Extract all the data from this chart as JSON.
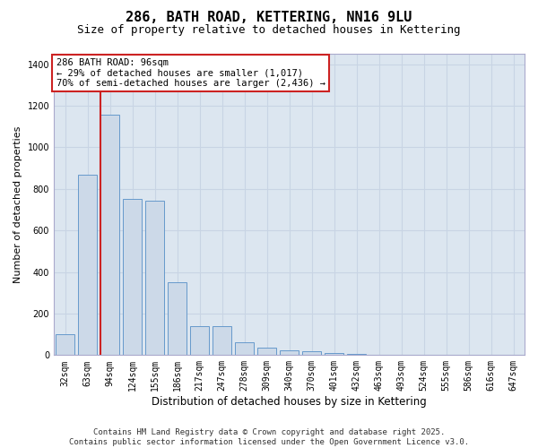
{
  "title": "286, BATH ROAD, KETTERING, NN16 9LU",
  "subtitle": "Size of property relative to detached houses in Kettering",
  "xlabel": "Distribution of detached houses by size in Kettering",
  "ylabel": "Number of detached properties",
  "categories": [
    "32sqm",
    "63sqm",
    "94sqm",
    "124sqm",
    "155sqm",
    "186sqm",
    "217sqm",
    "247sqm",
    "278sqm",
    "309sqm",
    "340sqm",
    "370sqm",
    "401sqm",
    "432sqm",
    "463sqm",
    "493sqm",
    "524sqm",
    "555sqm",
    "586sqm",
    "616sqm",
    "647sqm"
  ],
  "values": [
    100,
    870,
    1155,
    750,
    745,
    350,
    140,
    140,
    60,
    35,
    25,
    20,
    10,
    5,
    0,
    0,
    0,
    0,
    0,
    0,
    0
  ],
  "bar_color": "#ccd9e8",
  "bar_edge_color": "#6699cc",
  "redline_index": 2,
  "annotation_text": "286 BATH ROAD: 96sqm\n← 29% of detached houses are smaller (1,017)\n70% of semi-detached houses are larger (2,436) →",
  "annotation_box_facecolor": "#ffffff",
  "annotation_box_edgecolor": "#cc2222",
  "redline_color": "#cc2222",
  "grid_color": "#c8d4e4",
  "bg_color": "#dce6f0",
  "ylim": [
    0,
    1450
  ],
  "yticks": [
    0,
    200,
    400,
    600,
    800,
    1000,
    1200,
    1400
  ],
  "footnote": "Contains HM Land Registry data © Crown copyright and database right 2025.\nContains public sector information licensed under the Open Government Licence v3.0.",
  "title_fontsize": 11,
  "subtitle_fontsize": 9,
  "xlabel_fontsize": 8.5,
  "ylabel_fontsize": 8,
  "tick_fontsize": 7,
  "annotation_fontsize": 7.5,
  "footnote_fontsize": 6.5
}
